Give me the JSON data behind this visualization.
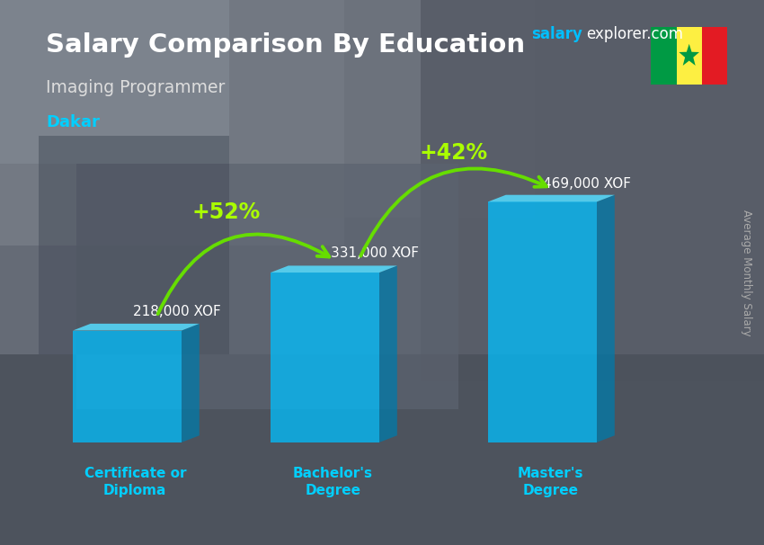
{
  "title": "Salary Comparison By Education",
  "subtitle": "Imaging Programmer",
  "city": "Dakar",
  "categories": [
    "Certificate or\nDiploma",
    "Bachelor's\nDegree",
    "Master's\nDegree"
  ],
  "values": [
    218000,
    331000,
    469000
  ],
  "value_labels": [
    "218,000 XOF",
    "331,000 XOF",
    "469,000 XOF"
  ],
  "pct_labels": [
    "+52%",
    "+42%"
  ],
  "bar_color_face": "#00BFFF",
  "bar_color_dark": "#007AAA",
  "bar_color_top": "#55DDFF",
  "bar_alpha": 0.75,
  "arrow_color": "#66DD00",
  "title_color": "#FFFFFF",
  "subtitle_color": "#DDDDDD",
  "city_color": "#00CFFF",
  "value_label_color": "#FFFFFF",
  "pct_label_color": "#AAFF00",
  "xlabel_color": "#00CFFF",
  "ylabel_text": "Average Monthly Salary",
  "ylabel_color": "#AAAAAA",
  "website_salary_color": "#00BFFF",
  "website_rest_color": "#FFFFFF",
  "figsize": [
    8.5,
    6.06
  ],
  "dpi": 100
}
